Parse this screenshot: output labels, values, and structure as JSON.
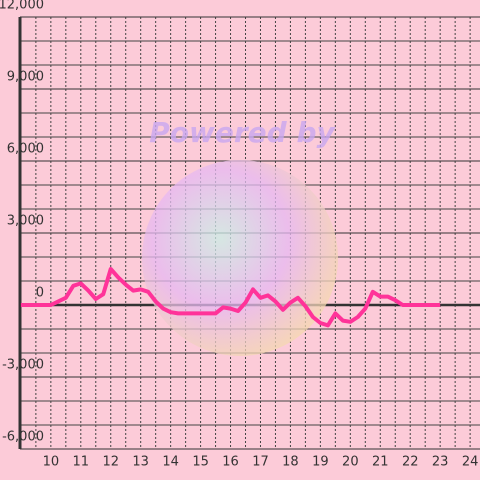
{
  "chart_data": {
    "type": "line",
    "watermark": "Powered by",
    "x": [
      9,
      10,
      10.5,
      10.75,
      11,
      11.25,
      11.5,
      11.75,
      12,
      12.25,
      12.5,
      12.75,
      13,
      13.25,
      13.5,
      13.75,
      14,
      14.25,
      14.5,
      14.75,
      15,
      15.25,
      15.5,
      15.75,
      16,
      16.25,
      16.5,
      16.75,
      17,
      17.25,
      17.5,
      17.75,
      18,
      18.25,
      18.5,
      18.75,
      19,
      19.25,
      19.5,
      19.75,
      20,
      20.25,
      20.5,
      20.75,
      21,
      21.25,
      21.5,
      21.75,
      22,
      22.5,
      23
    ],
    "series": [
      {
        "color": "#ff3399",
        "values": [
          0,
          0,
          300,
          800,
          900,
          600,
          250,
          450,
          1500,
          1150,
          850,
          600,
          650,
          550,
          150,
          -150,
          -300,
          -350,
          -350,
          -350,
          -350,
          -350,
          -350,
          -100,
          -150,
          -250,
          100,
          650,
          300,
          400,
          150,
          -200,
          100,
          300,
          -50,
          -500,
          -750,
          -850,
          -350,
          -650,
          -700,
          -500,
          -150,
          550,
          350,
          350,
          200,
          0,
          0,
          0,
          0
        ]
      }
    ],
    "xlim": [
      8.97,
      24.33
    ],
    "ylim": [
      -6000,
      12000
    ],
    "xticks": [
      10,
      11,
      12,
      13,
      14,
      15,
      16,
      17,
      18,
      19,
      20,
      21,
      22,
      23,
      24
    ],
    "yticks": [
      {
        "value": -6000,
        "label": "-6,000"
      },
      {
        "value": -3000,
        "label": "-3,000"
      },
      0,
      {
        "value": 3000,
        "label": "3,000"
      },
      {
        "value": 6000,
        "label": "6,000"
      },
      {
        "value": 9000,
        "label": "9,000"
      },
      {
        "value": 12000,
        "label": "12,000"
      }
    ],
    "ygrid": [
      -5000,
      -4000,
      -2000,
      -1000,
      1000,
      2000,
      4000,
      5000,
      7000,
      8000,
      10000,
      11000
    ],
    "xgrid": [
      9.5,
      10.5,
      11.5,
      12.5,
      13.5,
      14.5,
      15.5,
      16.5,
      17.5,
      18.5,
      19.5,
      20.5,
      21.5,
      22.5,
      23.5
    ]
  }
}
